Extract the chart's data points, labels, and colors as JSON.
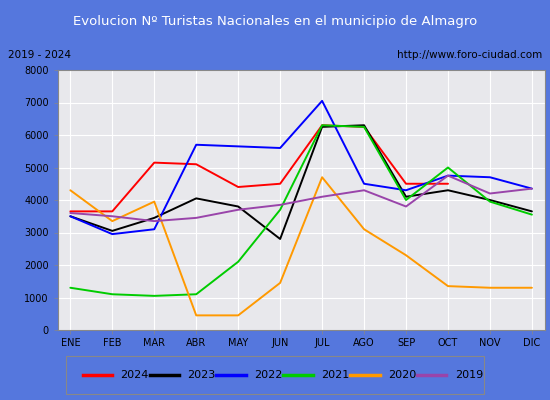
{
  "title": "Evolucion Nº Turistas Nacionales en el municipio de Almagro",
  "subtitle_left": "2019 - 2024",
  "subtitle_right": "http://www.foro-ciudad.com",
  "months": [
    "ENE",
    "FEB",
    "MAR",
    "ABR",
    "MAY",
    "JUN",
    "JUL",
    "AGO",
    "SEP",
    "OCT",
    "NOV",
    "DIC"
  ],
  "ylim": [
    0,
    8000
  ],
  "yticks": [
    0,
    1000,
    2000,
    3000,
    4000,
    5000,
    6000,
    7000,
    8000
  ],
  "series": {
    "2024": {
      "color": "#ff0000",
      "values": [
        3650,
        3650,
        5150,
        5100,
        4400,
        4500,
        6300,
        6250,
        4500,
        4500,
        null,
        null
      ]
    },
    "2023": {
      "color": "#000000",
      "values": [
        3500,
        3050,
        3450,
        4050,
        3800,
        2800,
        6250,
        6300,
        4100,
        4300,
        4000,
        3650
      ]
    },
    "2022": {
      "color": "#0000ff",
      "values": [
        3500,
        2950,
        3100,
        5700,
        5650,
        5600,
        7050,
        4500,
        4300,
        4750,
        4700,
        4350
      ]
    },
    "2021": {
      "color": "#00cc00",
      "values": [
        1300,
        1100,
        1050,
        1100,
        2100,
        3700,
        6300,
        6250,
        4000,
        5000,
        3950,
        3550
      ]
    },
    "2020": {
      "color": "#ff9900",
      "values": [
        4300,
        3350,
        3950,
        450,
        450,
        1450,
        4700,
        3100,
        2300,
        1350,
        1300,
        1300
      ]
    },
    "2019": {
      "color": "#9944aa",
      "values": [
        3600,
        3500,
        3350,
        3450,
        3700,
        3850,
        4100,
        4300,
        3800,
        4750,
        4200,
        4350
      ]
    }
  },
  "legend_order": [
    "2024",
    "2023",
    "2022",
    "2021",
    "2020",
    "2019"
  ],
  "title_bg": "#5577dd",
  "plot_bg": "#e8e8ec",
  "fig_bg": "#5577dd"
}
